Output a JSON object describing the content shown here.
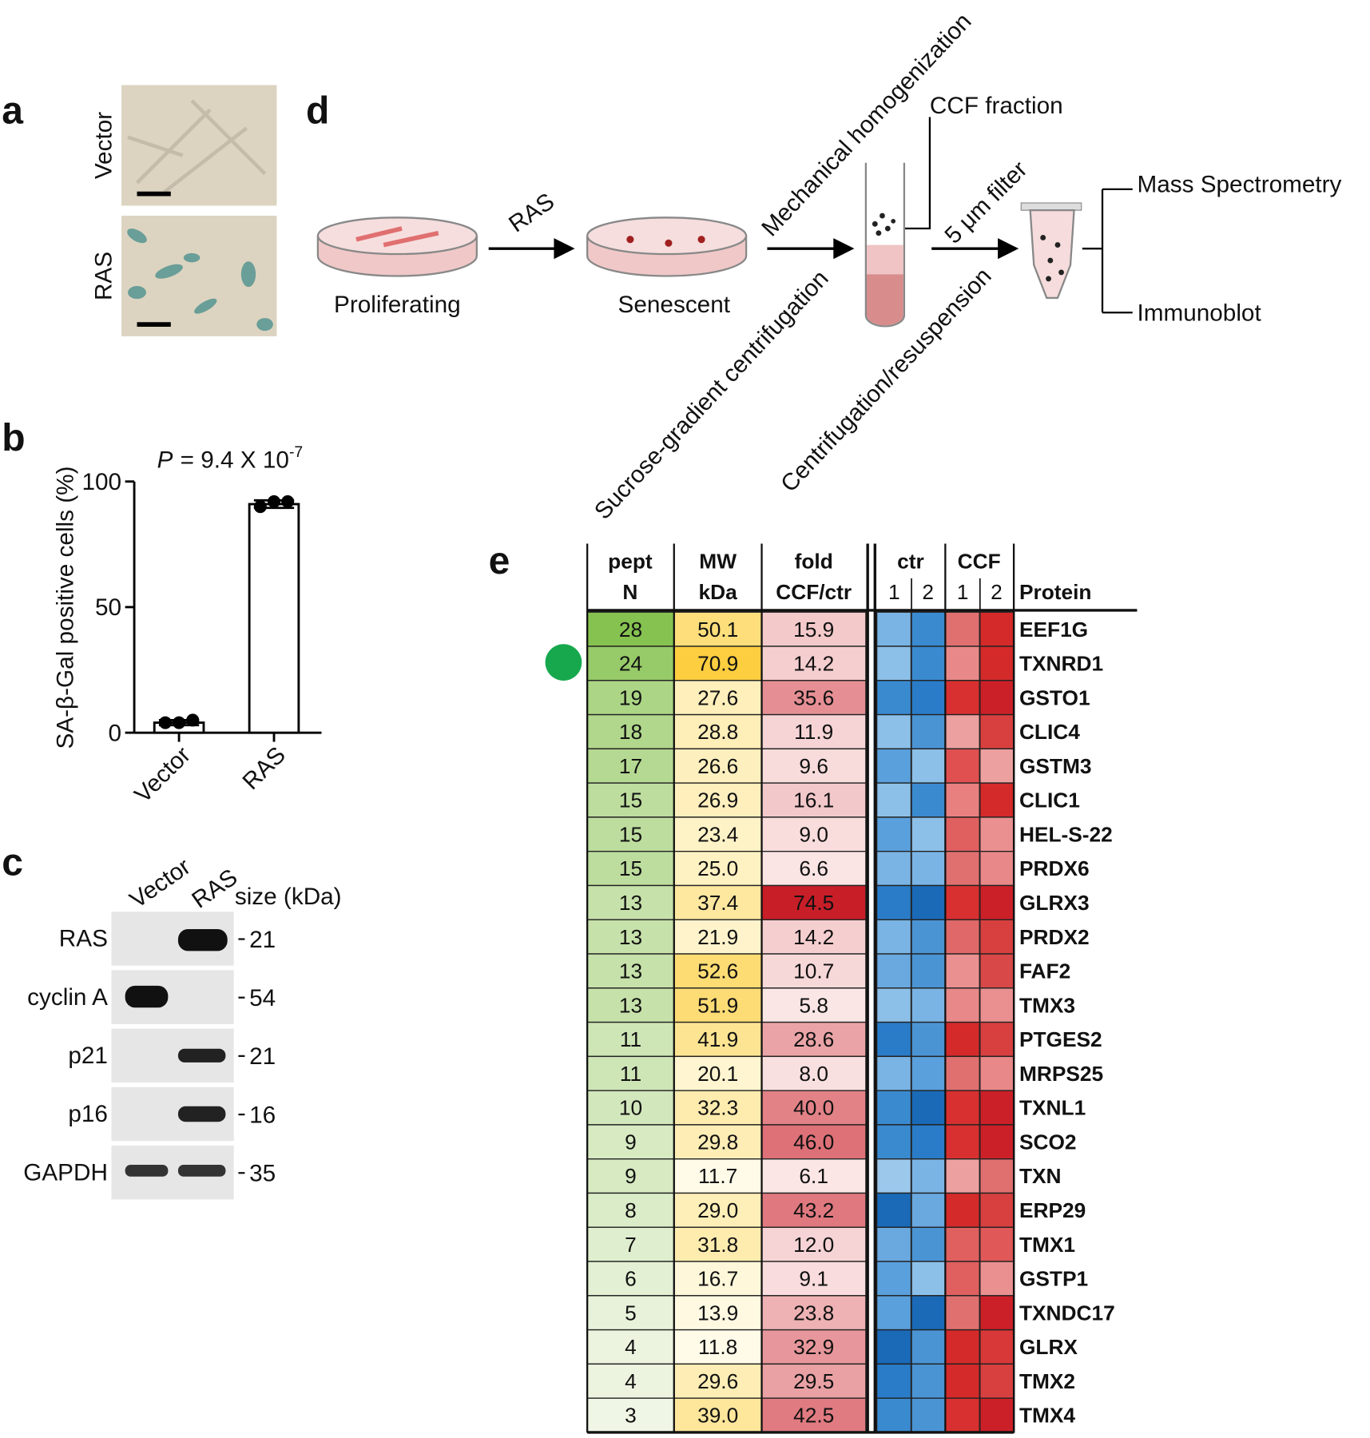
{
  "chart_data": {
    "type": "bar",
    "panel_label": "b",
    "ylabel": "SA-β-Gal positive cells (%)",
    "annotation": {
      "symbol": "P",
      "text": "= 9.4 X 10",
      "exponent": "-7"
    },
    "categories": [
      "Vector",
      "RAS"
    ],
    "values": [
      4,
      91
    ],
    "errors": [
      1,
      1.5
    ],
    "points": [
      [
        4,
        4,
        5
      ],
      [
        90,
        92,
        92
      ]
    ],
    "color": "#ffffff",
    "ylim": [
      0,
      100
    ],
    "yticks": [
      0,
      50,
      100
    ]
  },
  "panels": {
    "a": {
      "label": "a",
      "row_labels": [
        "Vector",
        "RAS"
      ]
    },
    "c": {
      "label": "c",
      "column_labels": [
        "Vector",
        "RAS"
      ],
      "size_header": "size (kDa)",
      "rows": [
        {
          "name": "RAS",
          "size": 21
        },
        {
          "name": "cyclin A",
          "size": 54
        },
        {
          "name": "p21",
          "size": 21
        },
        {
          "name": "p16",
          "size": 16
        },
        {
          "name": "GAPDH",
          "size": 35
        }
      ]
    },
    "d": {
      "label": "d",
      "steps": {
        "proliferating": "Proliferating",
        "ras": "RAS",
        "senescent": "Senescent",
        "homogenization": "Mechanical homogenization",
        "sucrose": "Sucrose-gradient centrifugation",
        "ccf": "CCF fraction",
        "filter": "5 μm filter",
        "centrifugation": "Centrifugation/resuspension",
        "ms": "Mass Spectrometry",
        "immunoblot": "Immunoblot"
      }
    },
    "e": {
      "label": "e",
      "headers": {
        "pept": [
          "pept",
          "N"
        ],
        "mw": [
          "MW",
          "kDa"
        ],
        "fold": [
          "fold",
          "CCF/ctr"
        ],
        "ctr": "ctr",
        "ccf": "CCF",
        "reps": [
          "1",
          "2"
        ],
        "protein": "Protein"
      },
      "rows": [
        {
          "pept": 28,
          "mw": "50.1",
          "fold": "15.9",
          "protein": "EEF1G",
          "heat": [
            "#7ab4e4",
            "#3a8ad0",
            "#e07070",
            "#d42a2a"
          ]
        },
        {
          "pept": 24,
          "mw": "70.9",
          "fold": "14.2",
          "protein": "TXNRD1",
          "heat": [
            "#8cc0e8",
            "#3a8ad0",
            "#e88888",
            "#d42a2a"
          ]
        },
        {
          "pept": 19,
          "mw": "27.6",
          "fold": "35.6",
          "protein": "GSTO1",
          "heat": [
            "#3a8ad0",
            "#2a7cc8",
            "#d83030",
            "#cc2028"
          ]
        },
        {
          "pept": 18,
          "mw": "28.8",
          "fold": "11.9",
          "protein": "CLIC4",
          "heat": [
            "#8cc0e8",
            "#4a94d4",
            "#eca0a0",
            "#d84040"
          ]
        },
        {
          "pept": 17,
          "mw": "26.6",
          "fold": "9.6",
          "protein": "GSTM3",
          "heat": [
            "#5aa0dc",
            "#8cc0e8",
            "#e05050",
            "#eca0a0"
          ]
        },
        {
          "pept": 15,
          "mw": "26.9",
          "fold": "16.1",
          "protein": "CLIC1",
          "heat": [
            "#8cc0e8",
            "#3a8ad0",
            "#e88080",
            "#d42a2a"
          ]
        },
        {
          "pept": 15,
          "mw": "23.4",
          "fold": "9.0",
          "protein": "HEL-S-22",
          "heat": [
            "#5aa0dc",
            "#8cc0e8",
            "#e06060",
            "#ea9090"
          ]
        },
        {
          "pept": 15,
          "mw": "25.0",
          "fold": "6.6",
          "protein": "PRDX6",
          "heat": [
            "#7ab4e4",
            "#7ab4e4",
            "#e07070",
            "#e88888"
          ]
        },
        {
          "pept": 13,
          "mw": "37.4",
          "fold": "74.5",
          "protein": "GLRX3",
          "heat": [
            "#2a7cc8",
            "#1a6ab8",
            "#d83030",
            "#cc2028"
          ]
        },
        {
          "pept": 13,
          "mw": "21.9",
          "fold": "14.2",
          "protein": "PRDX2",
          "heat": [
            "#7ab4e4",
            "#4a94d4",
            "#e06868",
            "#d84040"
          ]
        },
        {
          "pept": 13,
          "mw": "52.6",
          "fold": "10.7",
          "protein": "FAF2",
          "heat": [
            "#6aa8e0",
            "#4a94d4",
            "#ea9090",
            "#d84848"
          ]
        },
        {
          "pept": 13,
          "mw": "51.9",
          "fold": "5.8",
          "protein": "TMX3",
          "heat": [
            "#8cc0e8",
            "#7ab4e4",
            "#e88888",
            "#ea9090"
          ]
        },
        {
          "pept": 11,
          "mw": "41.9",
          "fold": "28.6",
          "protein": "PTGES2",
          "heat": [
            "#2a7cc8",
            "#4a94d4",
            "#d42a2a",
            "#d84040"
          ]
        },
        {
          "pept": 11,
          "mw": "20.1",
          "fold": "8.0",
          "protein": "MRPS25",
          "heat": [
            "#7ab4e4",
            "#5aa0dc",
            "#e07070",
            "#e88888"
          ]
        },
        {
          "pept": 10,
          "mw": "32.3",
          "fold": "40.0",
          "protein": "TXNL1",
          "heat": [
            "#3a8ad0",
            "#1a6ab8",
            "#d83030",
            "#cc2028"
          ]
        },
        {
          "pept": 9,
          "mw": "29.8",
          "fold": "46.0",
          "protein": "SCO2",
          "heat": [
            "#3a8ad0",
            "#2a7cc8",
            "#d83030",
            "#cc2028"
          ]
        },
        {
          "pept": 9,
          "mw": "11.7",
          "fold": "6.1",
          "protein": "TXN",
          "heat": [
            "#9cc8ec",
            "#7ab4e4",
            "#eca0a0",
            "#e07070"
          ]
        },
        {
          "pept": 8,
          "mw": "29.0",
          "fold": "43.2",
          "protein": "ERP29",
          "heat": [
            "#1a6ab8",
            "#6aa8e0",
            "#d42a2a",
            "#d84040"
          ]
        },
        {
          "pept": 7,
          "mw": "31.8",
          "fold": "12.0",
          "protein": "TMX1",
          "heat": [
            "#6aa8e0",
            "#4a94d4",
            "#e06060",
            "#e05858"
          ]
        },
        {
          "pept": 6,
          "mw": "16.7",
          "fold": "9.1",
          "protein": "GSTP1",
          "heat": [
            "#5aa0dc",
            "#8cc0e8",
            "#e06060",
            "#ea9090"
          ]
        },
        {
          "pept": 5,
          "mw": "13.9",
          "fold": "23.8",
          "protein": "TXNDC17",
          "heat": [
            "#5aa0dc",
            "#1a6ab8",
            "#e07070",
            "#cc2028"
          ]
        },
        {
          "pept": 4,
          "mw": "11.8",
          "fold": "32.9",
          "protein": "GLRX",
          "heat": [
            "#1a6ab8",
            "#4a94d4",
            "#d42a2a",
            "#d83838"
          ]
        },
        {
          "pept": 4,
          "mw": "29.6",
          "fold": "29.5",
          "protein": "TMX2",
          "heat": [
            "#2a7cc8",
            "#4a94d4",
            "#d42a2a",
            "#d84040"
          ]
        },
        {
          "pept": 3,
          "mw": "39.0",
          "fold": "42.5",
          "protein": "TMX4",
          "heat": [
            "#3a8ad0",
            "#4a94d4",
            "#d83030",
            "#cc2028"
          ]
        }
      ]
    }
  }
}
